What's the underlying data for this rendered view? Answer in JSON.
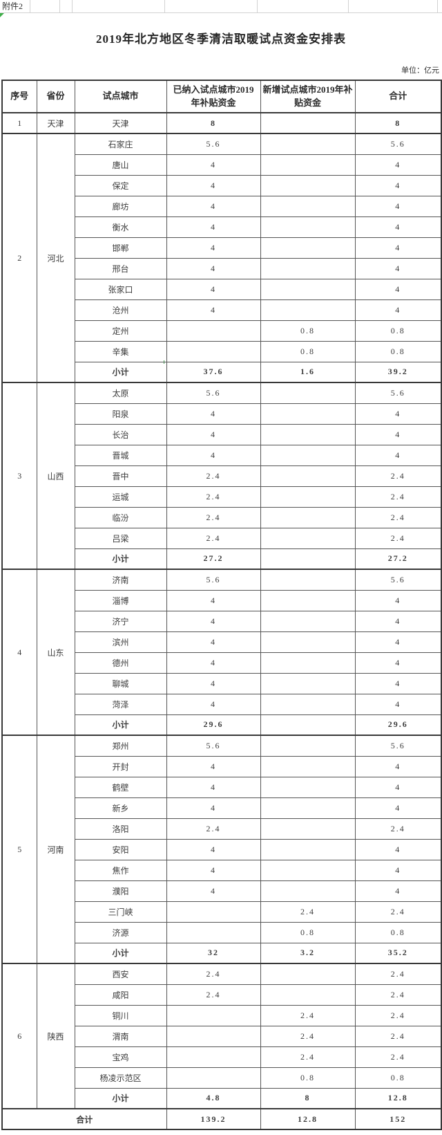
{
  "page": {
    "attachment_label": "附件2",
    "title": "2019年北方地区冬季清洁取暖试点资金安排表",
    "unit_label": "单位：亿元"
  },
  "table": {
    "columns": [
      "序号",
      "省份",
      "试点城市",
      "已纳入试点城市2019年补贴资金",
      "新增试点城市2019年补贴资金",
      "合计"
    ],
    "subtotal_label": "小计",
    "grand_total_label": "合计",
    "groups": [
      {
        "index": "1",
        "province": "天津",
        "rows": [
          {
            "city": "天津",
            "existing": "8",
            "added": "",
            "total": "8",
            "bold": true
          }
        ]
      },
      {
        "index": "2",
        "province": "河北",
        "rows": [
          {
            "city": "石家庄",
            "existing": "5.6",
            "added": "",
            "total": "5.6"
          },
          {
            "city": "唐山",
            "existing": "4",
            "added": "",
            "total": "4"
          },
          {
            "city": "保定",
            "existing": "4",
            "added": "",
            "total": "4"
          },
          {
            "city": "廊坊",
            "existing": "4",
            "added": "",
            "total": "4"
          },
          {
            "city": "衡水",
            "existing": "4",
            "added": "",
            "total": "4"
          },
          {
            "city": "邯郸",
            "existing": "4",
            "added": "",
            "total": "4"
          },
          {
            "city": "邢台",
            "existing": "4",
            "added": "",
            "total": "4"
          },
          {
            "city": "张家口",
            "existing": "4",
            "added": "",
            "total": "4"
          },
          {
            "city": "沧州",
            "existing": "4",
            "added": "",
            "total": "4"
          },
          {
            "city": "定州",
            "existing": "",
            "added": "0.8",
            "total": "0.8"
          },
          {
            "city": "辛集",
            "existing": "",
            "added": "0.8",
            "total": "0.8"
          }
        ],
        "subtotal": {
          "existing": "37.6",
          "added": "1.6",
          "total": "39.2"
        }
      },
      {
        "index": "3",
        "province": "山西",
        "rows": [
          {
            "city": "太原",
            "existing": "5.6",
            "added": "",
            "total": "5.6"
          },
          {
            "city": "阳泉",
            "existing": "4",
            "added": "",
            "total": "4"
          },
          {
            "city": "长治",
            "existing": "4",
            "added": "",
            "total": "4"
          },
          {
            "city": "晋城",
            "existing": "4",
            "added": "",
            "total": "4"
          },
          {
            "city": "晋中",
            "existing": "2.4",
            "added": "",
            "total": "2.4"
          },
          {
            "city": "运城",
            "existing": "2.4",
            "added": "",
            "total": "2.4"
          },
          {
            "city": "临汾",
            "existing": "2.4",
            "added": "",
            "total": "2.4"
          },
          {
            "city": "吕梁",
            "existing": "2.4",
            "added": "",
            "total": "2.4"
          }
        ],
        "subtotal": {
          "existing": "27.2",
          "added": "",
          "total": "27.2"
        }
      },
      {
        "index": "4",
        "province": "山东",
        "rows": [
          {
            "city": "济南",
            "existing": "5.6",
            "added": "",
            "total": "5.6"
          },
          {
            "city": "淄博",
            "existing": "4",
            "added": "",
            "total": "4"
          },
          {
            "city": "济宁",
            "existing": "4",
            "added": "",
            "total": "4"
          },
          {
            "city": "滨州",
            "existing": "4",
            "added": "",
            "total": "4"
          },
          {
            "city": "德州",
            "existing": "4",
            "added": "",
            "total": "4"
          },
          {
            "city": "聊城",
            "existing": "4",
            "added": "",
            "total": "4"
          },
          {
            "city": "菏泽",
            "existing": "4",
            "added": "",
            "total": "4"
          }
        ],
        "subtotal": {
          "existing": "29.6",
          "added": "",
          "total": "29.6"
        }
      },
      {
        "index": "5",
        "province": "河南",
        "rows": [
          {
            "city": "郑州",
            "existing": "5.6",
            "added": "",
            "total": "5.6"
          },
          {
            "city": "开封",
            "existing": "4",
            "added": "",
            "total": "4"
          },
          {
            "city": "鹤壁",
            "existing": "4",
            "added": "",
            "total": "4"
          },
          {
            "city": "新乡",
            "existing": "4",
            "added": "",
            "total": "4"
          },
          {
            "city": "洛阳",
            "existing": "2.4",
            "added": "",
            "total": "2.4"
          },
          {
            "city": "安阳",
            "existing": "4",
            "added": "",
            "total": "4"
          },
          {
            "city": "焦作",
            "existing": "4",
            "added": "",
            "total": "4"
          },
          {
            "city": "濮阳",
            "existing": "4",
            "added": "",
            "total": "4"
          },
          {
            "city": "三门峡",
            "existing": "",
            "added": "2.4",
            "total": "2.4"
          },
          {
            "city": "济源",
            "existing": "",
            "added": "0.8",
            "total": "0.8"
          }
        ],
        "subtotal": {
          "existing": "32",
          "added": "3.2",
          "total": "35.2"
        }
      },
      {
        "index": "6",
        "province": "陕西",
        "rows": [
          {
            "city": "西安",
            "existing": "2.4",
            "added": "",
            "total": "2.4"
          },
          {
            "city": "咸阳",
            "existing": "2.4",
            "added": "",
            "total": "2.4"
          },
          {
            "city": "铜川",
            "existing": "",
            "added": "2.4",
            "total": "2.4"
          },
          {
            "city": "渭南",
            "existing": "",
            "added": "2.4",
            "total": "2.4"
          },
          {
            "city": "宝鸡",
            "existing": "",
            "added": "2.4",
            "total": "2.4"
          },
          {
            "city": "杨凌示范区",
            "existing": "",
            "added": "0.8",
            "total": "0.8"
          }
        ],
        "subtotal": {
          "existing": "4.8",
          "added": "8",
          "total": "12.8"
        }
      }
    ],
    "grand_total": {
      "existing": "139.2",
      "added": "12.8",
      "total": "152"
    }
  }
}
